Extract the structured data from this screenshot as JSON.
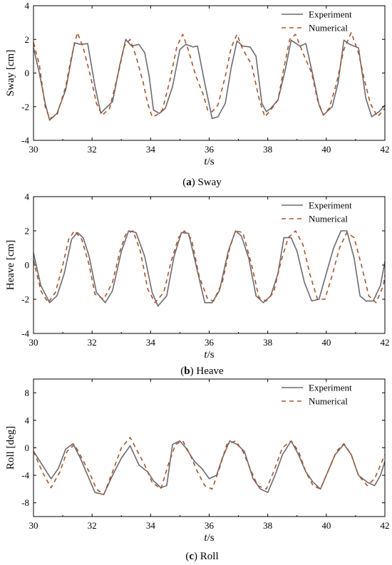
{
  "chart_data": [
    {
      "type": "line",
      "caption_tag": "(a)",
      "caption_text": " Sway",
      "ylabel": "Sway [cm]",
      "xlabel_italic": "t",
      "xlabel_rest": "/s",
      "xlim": [
        30,
        42
      ],
      "ylim": [
        -4,
        4
      ],
      "xticks": [
        30,
        32,
        34,
        36,
        38,
        40,
        42
      ],
      "yticks": [
        -4,
        -2,
        0,
        2,
        4
      ],
      "legend": "top-right",
      "series": [
        {
          "name": "Experiment",
          "color": "#6b6b72",
          "dash": "solid",
          "x": [
            30.0,
            30.2,
            30.4,
            30.55,
            30.8,
            31.1,
            31.4,
            31.6,
            31.85,
            32.1,
            32.3,
            32.4,
            32.7,
            32.95,
            33.15,
            33.35,
            33.6,
            33.8,
            33.95,
            34.1,
            34.3,
            34.5,
            34.75,
            35.0,
            35.2,
            35.45,
            35.6,
            35.85,
            36.1,
            36.3,
            36.55,
            36.75,
            36.95,
            37.15,
            37.4,
            37.6,
            37.8,
            37.95,
            38.1,
            38.35,
            38.6,
            38.8,
            39.1,
            39.3,
            39.55,
            39.75,
            39.9,
            40.2,
            40.4,
            40.6,
            40.8,
            41.1,
            41.35,
            41.55,
            41.8,
            42.0
          ],
          "y": [
            1.5,
            0.0,
            -1.8,
            -2.8,
            -2.4,
            -1.0,
            1.8,
            1.7,
            1.75,
            -0.8,
            -2.4,
            -2.2,
            -1.7,
            0.5,
            2.0,
            1.6,
            1.7,
            1.2,
            -0.2,
            -2.2,
            -2.4,
            -2.1,
            -0.8,
            1.4,
            1.7,
            1.55,
            1.6,
            -0.6,
            -2.7,
            -2.6,
            -1.8,
            0.3,
            1.9,
            1.6,
            1.55,
            1.0,
            -1.8,
            -2.3,
            -2.1,
            -1.6,
            0.2,
            1.95,
            1.6,
            1.75,
            -0.2,
            -1.9,
            -2.5,
            -2.0,
            -0.6,
            1.95,
            1.7,
            1.5,
            -1.5,
            -2.6,
            -2.3,
            -1.9
          ]
        },
        {
          "name": "Numerical",
          "color": "#a8542a",
          "dash": "6,5",
          "x": [
            30.0,
            30.2,
            30.4,
            30.55,
            30.8,
            31.1,
            31.3,
            31.5,
            31.7,
            31.95,
            32.15,
            32.35,
            32.6,
            32.9,
            33.1,
            33.3,
            33.5,
            33.75,
            33.9,
            34.05,
            34.2,
            34.4,
            34.65,
            34.9,
            35.1,
            35.3,
            35.55,
            35.8,
            35.95,
            36.1,
            36.3,
            36.55,
            36.75,
            36.95,
            37.15,
            37.45,
            37.7,
            37.9,
            38.1,
            38.35,
            38.55,
            38.75,
            38.95,
            39.2,
            39.5,
            39.7,
            39.9,
            40.1,
            40.35,
            40.6,
            40.85,
            41.1,
            41.3,
            41.5,
            41.75,
            42.0
          ],
          "y": [
            1.8,
            0.5,
            -2.0,
            -2.7,
            -2.5,
            -0.8,
            1.0,
            2.4,
            1.5,
            -0.2,
            -1.8,
            -2.5,
            -2.1,
            0.0,
            1.6,
            2.0,
            1.0,
            -0.6,
            -1.8,
            -2.6,
            -2.5,
            -2.2,
            -0.5,
            1.6,
            2.3,
            1.3,
            -0.2,
            -1.3,
            -2.2,
            -2.3,
            -1.9,
            -0.2,
            1.5,
            2.3,
            1.4,
            0.5,
            -1.5,
            -2.6,
            -2.2,
            -1.6,
            0.3,
            2.0,
            2.3,
            1.2,
            0.0,
            -1.6,
            -2.5,
            -2.1,
            -0.6,
            1.4,
            2.4,
            1.2,
            -0.4,
            -1.8,
            -2.6,
            -2.1
          ]
        }
      ]
    },
    {
      "type": "line",
      "caption_tag": "(b)",
      "caption_text": " Heave",
      "ylabel": "Heave [cm]",
      "xlabel_italic": "t",
      "xlabel_rest": "/s",
      "xlim": [
        30,
        42
      ],
      "ylim": [
        -4,
        4
      ],
      "xticks": [
        30,
        32,
        34,
        36,
        38,
        40,
        42
      ],
      "yticks": [
        -4,
        -2,
        0,
        2,
        4
      ],
      "legend": "top-right",
      "series": [
        {
          "name": "Experiment",
          "color": "#6b6b72",
          "dash": "solid",
          "x": [
            30.0,
            30.25,
            30.55,
            30.8,
            31.05,
            31.3,
            31.5,
            31.7,
            31.9,
            32.15,
            32.45,
            32.7,
            33.0,
            33.25,
            33.5,
            33.8,
            34.05,
            34.25,
            34.55,
            34.8,
            35.05,
            35.3,
            35.55,
            35.85,
            36.1,
            36.35,
            36.65,
            36.9,
            37.1,
            37.35,
            37.6,
            37.85,
            38.1,
            38.35,
            38.55,
            38.8,
            39.0,
            39.25,
            39.5,
            39.75,
            40.0,
            40.25,
            40.5,
            40.7,
            40.95,
            41.15,
            41.35,
            41.6,
            41.85,
            42.0
          ],
          "y": [
            0.7,
            -1.2,
            -2.2,
            -1.8,
            -0.5,
            1.5,
            1.9,
            1.6,
            0.5,
            -1.6,
            -2.2,
            -1.5,
            0.8,
            2.0,
            1.9,
            0.5,
            -1.6,
            -2.4,
            -1.8,
            0.5,
            1.9,
            1.85,
            0.0,
            -2.2,
            -2.2,
            -1.5,
            0.8,
            2.0,
            1.7,
            0.4,
            -1.8,
            -2.2,
            -1.8,
            -0.5,
            1.6,
            1.6,
            0.8,
            -1.0,
            -2.1,
            -2.0,
            -0.5,
            1.0,
            2.0,
            2.0,
            0.4,
            -1.8,
            -2.1,
            -2.1,
            -1.2,
            0.2
          ]
        },
        {
          "name": "Numerical",
          "color": "#a8542a",
          "dash": "6,5",
          "x": [
            30.0,
            30.25,
            30.5,
            30.75,
            31.0,
            31.2,
            31.4,
            31.65,
            31.9,
            32.1,
            32.4,
            32.7,
            32.95,
            33.15,
            33.4,
            33.65,
            33.9,
            34.15,
            34.45,
            34.7,
            34.95,
            35.15,
            35.4,
            35.65,
            35.95,
            36.15,
            36.45,
            36.7,
            36.9,
            37.15,
            37.45,
            37.7,
            37.95,
            38.2,
            38.45,
            38.7,
            38.95,
            39.2,
            39.45,
            39.7,
            39.95,
            40.2,
            40.45,
            40.7,
            40.95,
            41.2,
            41.45,
            41.7,
            41.95,
            42.0
          ],
          "y": [
            0.3,
            -1.5,
            -2.2,
            -1.6,
            0.0,
            1.5,
            2.0,
            1.5,
            0.0,
            -1.7,
            -2.0,
            -1.0,
            0.8,
            1.8,
            2.0,
            0.8,
            -1.4,
            -2.2,
            -1.6,
            0.2,
            1.6,
            2.0,
            1.5,
            -0.6,
            -2.0,
            -2.1,
            -1.0,
            1.0,
            2.0,
            1.9,
            0.0,
            -1.9,
            -2.1,
            -1.6,
            0.2,
            1.6,
            2.0,
            1.2,
            -0.6,
            -2.0,
            -2.0,
            -0.6,
            1.0,
            1.9,
            1.6,
            0.0,
            -1.8,
            -2.2,
            -1.2,
            -0.6
          ]
        }
      ]
    },
    {
      "type": "line",
      "caption_tag": "(c)",
      "caption_text": " Roll",
      "ylabel": "Roll [deg]",
      "xlabel_italic": "t",
      "xlabel_rest": "/s",
      "xlim": [
        30,
        42
      ],
      "ylim": [
        -10,
        10
      ],
      "xticks": [
        30,
        32,
        34,
        36,
        38,
        40,
        42
      ],
      "yticks": [
        -8,
        -4,
        0,
        4,
        8
      ],
      "legend": "top-right",
      "series": [
        {
          "name": "Experiment",
          "color": "#6b6b72",
          "dash": "solid",
          "x": [
            30.0,
            30.3,
            30.6,
            30.85,
            31.1,
            31.35,
            31.6,
            31.85,
            32.1,
            32.4,
            32.7,
            33.0,
            33.3,
            33.6,
            33.9,
            34.1,
            34.35,
            34.55,
            34.75,
            35.0,
            35.2,
            35.5,
            35.75,
            36.0,
            36.25,
            36.45,
            36.7,
            36.95,
            37.2,
            37.5,
            37.75,
            38.0,
            38.25,
            38.5,
            38.8,
            39.05,
            39.3,
            39.55,
            39.8,
            40.0,
            40.3,
            40.6,
            40.85,
            41.1,
            41.4,
            41.65,
            41.85,
            42.0
          ],
          "y": [
            -0.5,
            -2.5,
            -4.5,
            -3.0,
            -0.2,
            0.6,
            -1.5,
            -4.0,
            -6.5,
            -6.8,
            -4.0,
            -1.5,
            0.3,
            -2.5,
            -3.5,
            -4.8,
            -5.8,
            -5.5,
            0.5,
            1.0,
            0.0,
            -2.0,
            -3.0,
            -4.5,
            -4.0,
            -1.5,
            1.0,
            0.5,
            -0.5,
            -4.5,
            -6.0,
            -6.5,
            -4.0,
            -1.0,
            1.0,
            -1.0,
            -3.5,
            -5.0,
            -6.0,
            -4.0,
            -1.0,
            0.5,
            -1.0,
            -4.0,
            -5.0,
            -5.5,
            -4.0,
            -2.0
          ]
        },
        {
          "name": "Numerical",
          "color": "#a8542a",
          "dash": "6,5",
          "x": [
            30.0,
            30.3,
            30.6,
            30.9,
            31.15,
            31.4,
            31.65,
            31.9,
            32.15,
            32.4,
            32.7,
            33.0,
            33.3,
            33.55,
            33.8,
            34.05,
            34.35,
            34.6,
            34.85,
            35.1,
            35.35,
            35.6,
            35.85,
            36.1,
            36.35,
            36.6,
            36.9,
            37.15,
            37.4,
            37.65,
            37.95,
            38.2,
            38.5,
            38.8,
            39.05,
            39.3,
            39.55,
            39.8,
            40.05,
            40.35,
            40.6,
            40.85,
            41.1,
            41.4,
            41.65,
            41.9,
            42.0
          ],
          "y": [
            -0.5,
            -3.5,
            -5.8,
            -3.5,
            -0.5,
            0.5,
            -1.5,
            -3.5,
            -6.0,
            -6.8,
            -3.5,
            0.0,
            1.5,
            -0.5,
            -2.5,
            -5.0,
            -6.0,
            -2.5,
            0.5,
            1.0,
            -1.0,
            -3.5,
            -5.5,
            -6.0,
            -3.0,
            0.5,
            1.0,
            -0.5,
            -3.0,
            -5.5,
            -6.0,
            -3.5,
            0.0,
            1.0,
            -0.5,
            -3.5,
            -5.5,
            -6.0,
            -3.5,
            -0.5,
            0.6,
            -1.0,
            -4.0,
            -5.5,
            -4.5,
            -2.0,
            -1.0
          ]
        }
      ]
    }
  ]
}
